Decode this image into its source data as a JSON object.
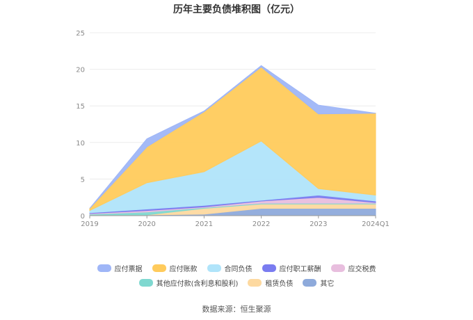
{
  "chart_data": {
    "type": "area",
    "title": "历年主要负债堆积图（亿元）",
    "stacked": true,
    "categories": [
      "2019",
      "2020",
      "2021",
      "2022",
      "2023",
      "2024Q1"
    ],
    "ylim": [
      0,
      25
    ],
    "yticks": [
      0,
      5,
      10,
      15,
      20,
      25
    ],
    "grid": true,
    "legend_position": "bottom",
    "series": [
      {
        "name": "其它",
        "color": "#8eaadb",
        "values": [
          0.1,
          0.1,
          0.2,
          1.0,
          1.0,
          1.0
        ]
      },
      {
        "name": "租赁负债",
        "color": "#fdd9a0",
        "values": [
          0.0,
          0.0,
          0.8,
          0.6,
          0.6,
          0.6
        ]
      },
      {
        "name": "其他应付款(含利息和股利)",
        "color": "#7fd8d0",
        "values": [
          0.1,
          0.4,
          0.1,
          0.1,
          0.1,
          0.1
        ]
      },
      {
        "name": "应交税费",
        "color": "#e8bede",
        "values": [
          0.1,
          0.2,
          0.1,
          0.3,
          0.8,
          0.1
        ]
      },
      {
        "name": "应付职工薪酬",
        "color": "#7a7cf0",
        "values": [
          0.1,
          0.2,
          0.2,
          0.1,
          0.3,
          0.2
        ]
      },
      {
        "name": "合同负债",
        "color": "#b0e4fa",
        "values": [
          0.3,
          3.6,
          4.6,
          8.1,
          0.9,
          0.8
        ]
      },
      {
        "name": "应付账款",
        "color": "#ffcb5c",
        "values": [
          0.3,
          4.9,
          8.2,
          10.1,
          10.2,
          11.2
        ]
      },
      {
        "name": "应付票据",
        "color": "#9fb6f7",
        "values": [
          0.0,
          1.1,
          0.1,
          0.2,
          1.2,
          0.0
        ]
      }
    ],
    "legend_rows": [
      [
        "应付票据",
        "应付账款",
        "合同负债",
        "应付职工薪酬",
        "应交税费"
      ],
      [
        "其他应付款(含利息和股利)",
        "租赁负债",
        "其它"
      ]
    ],
    "source": "数据来源：恒生聚源"
  }
}
